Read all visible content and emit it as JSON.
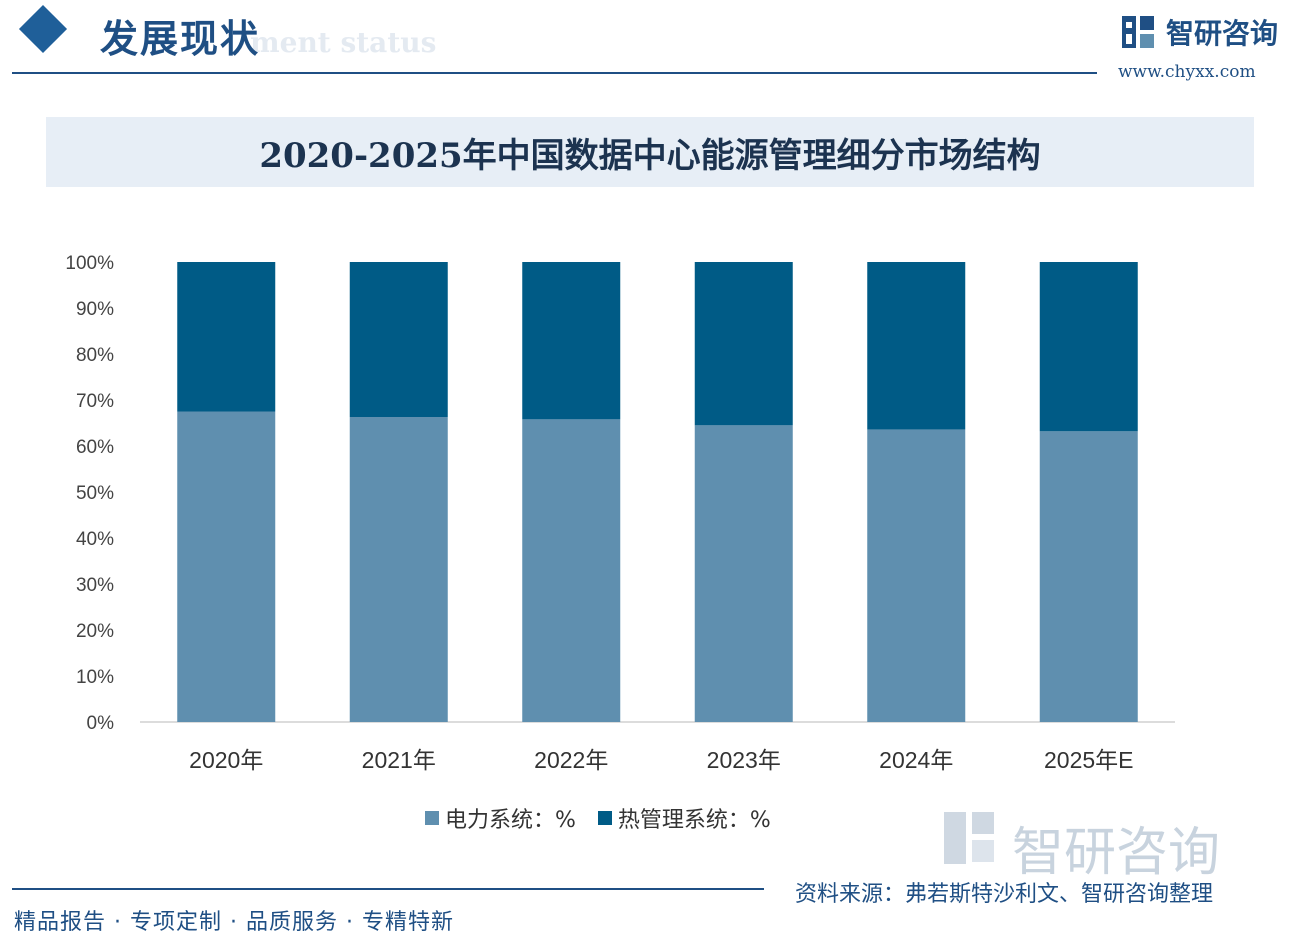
{
  "header": {
    "section_title": "发展现状",
    "section_subtitle": "ment status",
    "brand_name": "智研咨询",
    "brand_url": "www.chyxx.com"
  },
  "colors": {
    "power": "#5f8faf",
    "thermal": "#005b86",
    "brand": "#1f4f84"
  },
  "chart_data": {
    "type": "bar",
    "stacked": true,
    "title": "2020-2025年中国数据中心能源管理细分市场结构",
    "categories": [
      "2020年",
      "2021年",
      "2022年",
      "2023年",
      "2024年",
      "2025年E"
    ],
    "series": [
      {
        "name": "电力系统：%",
        "values": [
          67.5,
          66.3,
          65.8,
          64.5,
          63.6,
          63.2
        ]
      },
      {
        "name": "热管理系统：%",
        "values": [
          32.5,
          33.7,
          34.2,
          35.5,
          36.4,
          36.8
        ]
      }
    ],
    "y_ticks": [
      "0%",
      "10%",
      "20%",
      "30%",
      "40%",
      "50%",
      "60%",
      "70%",
      "80%",
      "90%",
      "100%"
    ],
    "ylim": [
      0,
      100
    ],
    "xlabel": "",
    "ylabel": "",
    "legend": "bottom"
  },
  "watermark": {
    "text": "智研咨询"
  },
  "footer": {
    "source": "资料来源：弗若斯特沙利文、智研咨询整理",
    "slogan": "精品报告 · 专项定制 · 品质服务 · 专精特新"
  }
}
